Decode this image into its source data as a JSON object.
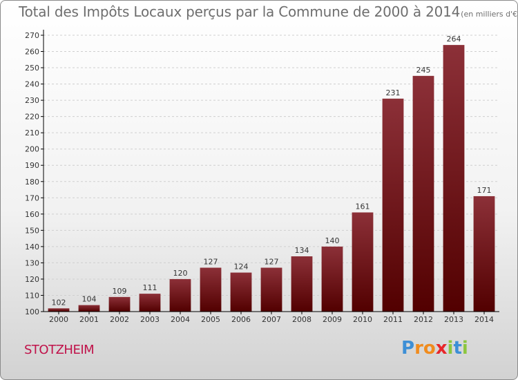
{
  "title": "Total des Impôts Locaux perçus par la Commune de 2000 à 2014",
  "unit": "(en milliers d'€)",
  "commune": "STOTZHEIM",
  "logo": {
    "text": "Proxiti",
    "letters": [
      {
        "char": "P",
        "color": "#3d8fd6"
      },
      {
        "char": "r",
        "color": "#f08c1e"
      },
      {
        "char": "o",
        "color": "#f08c1e"
      },
      {
        "char": "x",
        "color": "#e8262a"
      },
      {
        "char": "i",
        "color": "#8cc63f"
      },
      {
        "char": "t",
        "color": "#3d8fd6"
      },
      {
        "char": "i",
        "color": "#8cc63f"
      }
    ]
  },
  "colors": {
    "bar_top": "#8c3038",
    "bar_bottom": "#520000",
    "grid": "#cfcfcf",
    "axis": "#000000",
    "text": "#333333"
  },
  "chart_data": {
    "type": "bar",
    "categories": [
      "2000",
      "2001",
      "2002",
      "2003",
      "2004",
      "2005",
      "2006",
      "2007",
      "2008",
      "2009",
      "2010",
      "2011",
      "2012",
      "2013",
      "2014"
    ],
    "values": [
      102,
      104,
      109,
      111,
      120,
      127,
      124,
      127,
      134,
      140,
      161,
      231,
      245,
      264,
      171
    ],
    "ylim": [
      100,
      270
    ],
    "yticks": [
      100,
      110,
      120,
      130,
      140,
      150,
      160,
      170,
      180,
      190,
      200,
      210,
      220,
      230,
      240,
      250,
      260,
      270
    ],
    "grid": "horizontal dashed",
    "legend": "none"
  }
}
